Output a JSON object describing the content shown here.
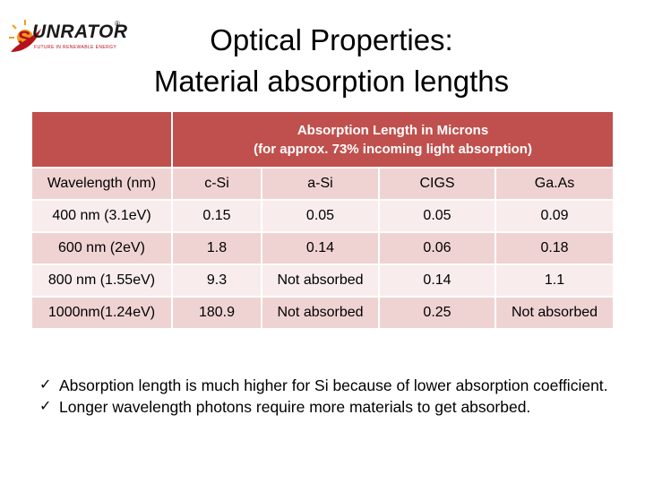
{
  "logo": {
    "word": "UNRATOR",
    "registered": "®",
    "tagline": "FUTURE IN RENEWABLE ENERGY"
  },
  "title": {
    "line1": "Optical Properties:",
    "line2": "Material absorption lengths"
  },
  "table": {
    "header_line1": "Absorption Length in Microns",
    "header_line2": "(for approx. 73% incoming light absorption)",
    "columns": [
      "Wavelength (nm)",
      "c-Si",
      "a-Si",
      "CIGS",
      "Ga.As"
    ],
    "rows": [
      [
        "400 nm (3.1eV)",
        "0.15",
        "0.05",
        "0.05",
        "0.09"
      ],
      [
        "600 nm (2eV)",
        "1.8",
        "0.14",
        "0.06",
        "0.18"
      ],
      [
        "800 nm (1.55eV)",
        "9.3",
        "Not absorbed",
        "0.14",
        "1.1"
      ],
      [
        "1000nm(1.24eV)",
        "180.9",
        "Not absorbed",
        "0.25",
        "Not absorbed"
      ]
    ]
  },
  "bullets": {
    "check_glyph": "✓",
    "items": [
      "Absorption length is much higher for Si because of lower absorption coefficient.",
      "Longer wavelength photons require more materials to get absorbed."
    ]
  },
  "colors": {
    "header_bg": "#c0504d",
    "row_dark": "#efd3d2",
    "row_light": "#f8ecec",
    "logo_red": "#b5121b",
    "logo_orange": "#f39a1e"
  }
}
